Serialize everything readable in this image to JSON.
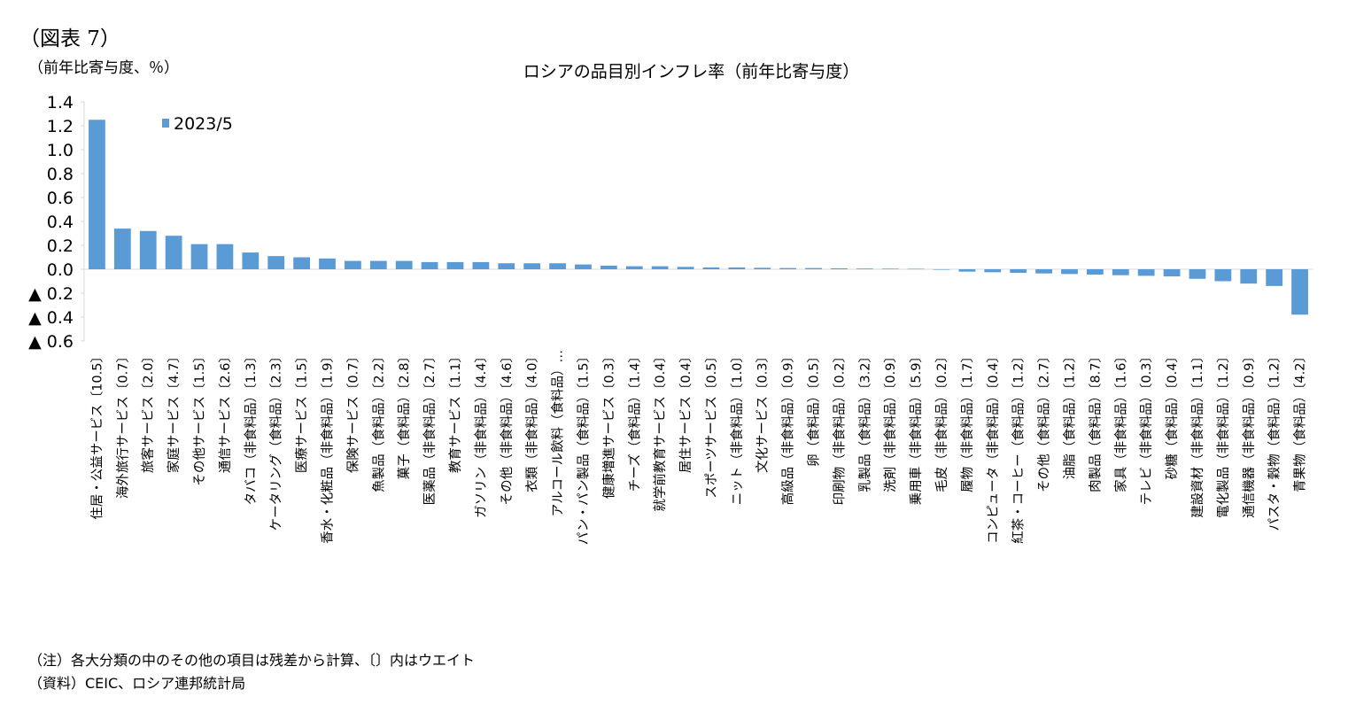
{
  "figure_label": "（図表 7）",
  "unit_label": "（前年比寄与度、％）",
  "note": "（注）各大分類の中のその他の項目は残差から計算、〔〕内はウエイト",
  "source": "（資料）CEIC、ロシア連邦統計局",
  "colors": {
    "bar": "#5B9BD5",
    "axis": "#d9d9d9"
  },
  "chart_data": {
    "type": "bar",
    "title": "ロシアの品目別インフレ率（前年比寄与度）",
    "ylabel": "（前年比寄与度、％）",
    "ylim": [
      -0.6,
      1.4
    ],
    "yticks": [
      1.4,
      1.2,
      1.0,
      0.8,
      0.6,
      0.4,
      0.2,
      0.0,
      -0.2,
      -0.4,
      -0.6
    ],
    "ytick_labels": [
      "1.4",
      "1.2",
      "1.0",
      "0.8",
      "0.6",
      "0.4",
      "0.2",
      "0.0",
      "▲ 0.2",
      "▲ 0.4",
      "▲ 0.6"
    ],
    "legend": {
      "position": "top-left"
    },
    "grid": false,
    "categories": [
      "住居・公益サービス〔10.5〕",
      "海外旅行サービス〔0.7〕",
      "旅客サービス〔2.0〕",
      "家庭サービス〔4.7〕",
      "その他サービス〔1.5〕",
      "通信サービス〔2.6〕",
      "タバコ（非食料品）〔1.3〕",
      "ケータリング（食料品）〔2.3〕",
      "医療サービス〔1.5〕",
      "香水・化粧品（非食料品）〔1.9〕",
      "保険サービス〔0.7〕",
      "魚製品（食料品）〔2.2〕",
      "菓子（食料品）〔2.8〕",
      "医薬品（非食料品）〔2.7〕",
      "教育サービス〔1.1〕",
      "ガソリン（非食料品）〔4.4〕",
      "その他（非食料品）〔4.6〕",
      "衣類（非食料品）〔4.0〕",
      "アルコール飲料（食料品）…",
      "パン・パン製品（食料品）〔1.5〕",
      "健康増進サービス〔0.3〕",
      "チーズ（食料品）〔1.4〕",
      "就学前教育サービス〔0.4〕",
      "居住サービス〔0.4〕",
      "スポーツサービス〔0.5〕",
      "ニット（非食料品）〔1.0〕",
      "文化サービス〔0.3〕",
      "高級品（非食料品）〔0.9〕",
      "卵（食料品）〔0.5〕",
      "印刷物（非食料品）〔0.2〕",
      "乳製品（食料品）〔3.2〕",
      "洗剤（非食料品）〔0.9〕",
      "乗用車（非食料品）〔5.9〕",
      "毛皮（非食料品）〔0.2〕",
      "履物（非食料品）〔1.7〕",
      "コンピュータ（非食料品）〔0.4〕",
      "紅茶・コーヒー（食料品）〔1.2〕",
      "その他（食料品）〔2.7〕",
      "油脂（食料品）〔1.2〕",
      "肉製品（食料品）〔8.7〕",
      "家具（非食料品）〔1.6〕",
      "テレビ（非食料品）〔0.3〕",
      "砂糖（食料品）〔0.4〕",
      "建設資材（非食料品）〔1.1〕",
      "電化製品（非食料品）〔1.2〕",
      "通信機器（非食料品）〔0.9〕",
      "パスタ・穀物（食料品）〔1.2〕",
      "青果物（食料品）〔4.2〕"
    ],
    "series": [
      {
        "name": "2023/5",
        "values": [
          1.25,
          0.34,
          0.32,
          0.28,
          0.21,
          0.21,
          0.14,
          0.11,
          0.1,
          0.09,
          0.07,
          0.07,
          0.07,
          0.06,
          0.06,
          0.06,
          0.05,
          0.05,
          0.05,
          0.04,
          0.03,
          0.025,
          0.025,
          0.02,
          0.015,
          0.015,
          0.012,
          0.01,
          0.01,
          0.008,
          0.006,
          0.005,
          0.004,
          0.0,
          -0.02,
          -0.025,
          -0.03,
          -0.035,
          -0.04,
          -0.045,
          -0.05,
          -0.055,
          -0.06,
          -0.08,
          -0.1,
          -0.12,
          -0.14,
          -0.38
        ]
      }
    ]
  }
}
